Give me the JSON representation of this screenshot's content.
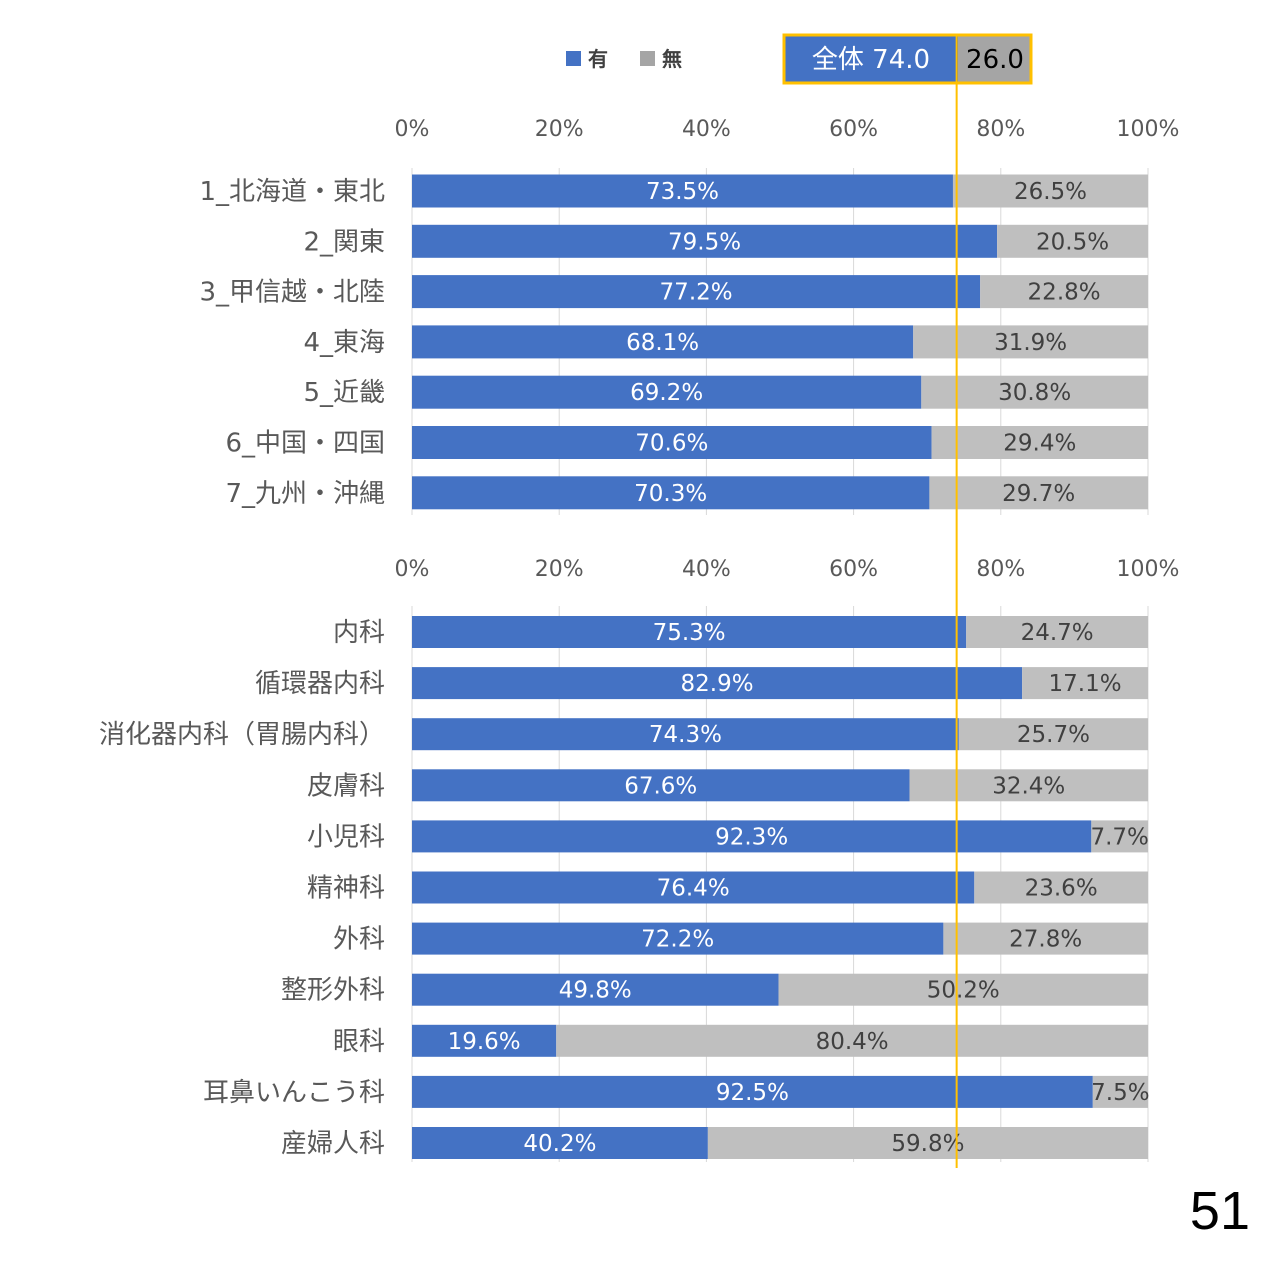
{
  "page_number": "51",
  "legend": [
    {
      "label": "有",
      "color": "#4472C4"
    },
    {
      "label": "無",
      "color": "#A5A5A5"
    }
  ],
  "overall": {
    "label": "全体 74.0",
    "yes": 74.0,
    "no_label": "26.0",
    "no": 26.0,
    "border_color": "#FFC000"
  },
  "chart_data": [
    {
      "type": "bar",
      "orientation": "horizontal",
      "stacked": "percent",
      "xlim": [
        0,
        100
      ],
      "ticks": [
        "0%",
        "20%",
        "40%",
        "60%",
        "80%",
        "100%"
      ],
      "categories": [
        "1_北海道・東北",
        "2_関東",
        "3_甲信越・北陸",
        "4_東海",
        "5_近畿",
        "6_中国・四国",
        "7_九州・沖縄"
      ],
      "series": [
        {
          "name": "有",
          "color": "#4472C4",
          "values": [
            73.5,
            79.5,
            77.2,
            68.1,
            69.2,
            70.6,
            70.3
          ],
          "labels": [
            "73.5%",
            "79.5%",
            "77.2%",
            "68.1%",
            "69.2%",
            "70.6%",
            "70.3%"
          ]
        },
        {
          "name": "無",
          "color": "#BFBFBF",
          "values": [
            26.5,
            20.5,
            22.8,
            31.9,
            30.8,
            29.4,
            29.7
          ],
          "labels": [
            "26.5%",
            "20.5%",
            "22.8%",
            "31.9%",
            "30.8%",
            "29.4%",
            "29.7%"
          ]
        }
      ],
      "reference_line": 74.0
    },
    {
      "type": "bar",
      "orientation": "horizontal",
      "stacked": "percent",
      "xlim": [
        0,
        100
      ],
      "ticks": [
        "0%",
        "20%",
        "40%",
        "60%",
        "80%",
        "100%"
      ],
      "categories": [
        "内科",
        "循環器内科",
        "消化器内科（胃腸内科）",
        "皮膚科",
        "小児科",
        "精神科",
        "外科",
        "整形外科",
        "眼科",
        "耳鼻いんこう科",
        "産婦人科"
      ],
      "series": [
        {
          "name": "有",
          "color": "#4472C4",
          "values": [
            75.3,
            82.9,
            74.3,
            67.6,
            92.3,
            76.4,
            72.2,
            49.8,
            19.6,
            92.5,
            40.2
          ],
          "labels": [
            "75.3%",
            "82.9%",
            "74.3%",
            "67.6%",
            "92.3%",
            "76.4%",
            "72.2%",
            "49.8%",
            "19.6%",
            "92.5%",
            "40.2%"
          ]
        },
        {
          "name": "無",
          "color": "#BFBFBF",
          "values": [
            24.7,
            17.1,
            25.7,
            32.4,
            7.7,
            23.6,
            27.8,
            50.2,
            80.4,
            7.5,
            59.8
          ],
          "labels": [
            "24.7%",
            "17.1%",
            "25.7%",
            "32.4%",
            "7.7%",
            "23.6%",
            "27.8%",
            "50.2%",
            "80.4%",
            "7.5%",
            "59.8%"
          ]
        }
      ],
      "reference_line": 74.0
    }
  ]
}
